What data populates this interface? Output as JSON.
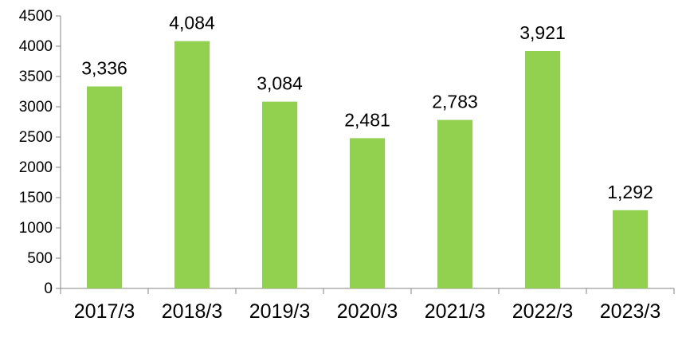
{
  "chart_data": {
    "type": "bar",
    "title": "",
    "xlabel": "",
    "ylabel": "",
    "categories": [
      "2017/3",
      "2018/3",
      "2019/3",
      "2020/3",
      "2021/3",
      "2022/3",
      "2023/3"
    ],
    "values": [
      3336,
      4084,
      3084,
      2481,
      2783,
      3921,
      1292
    ],
    "data_labels": [
      "3,336",
      "4,084",
      "3,084",
      "2,481",
      "2,783",
      "3,921",
      "1,292"
    ],
    "ylim": [
      0,
      4500
    ],
    "yticks": [
      0,
      500,
      1000,
      1500,
      2000,
      2500,
      3000,
      3500,
      4000,
      4500
    ],
    "bar_color": "#92d050",
    "grid": false,
    "legend": "none"
  }
}
